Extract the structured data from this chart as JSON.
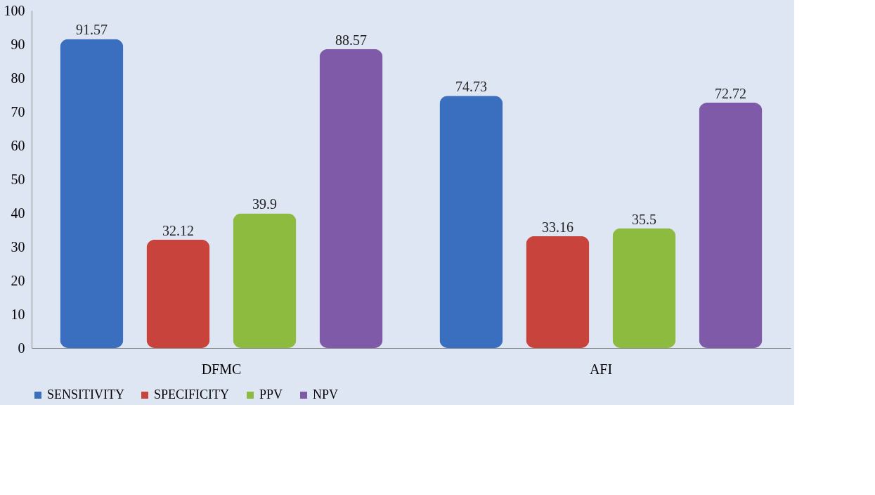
{
  "chart_data": {
    "type": "bar",
    "categories": [
      "DFMC",
      "AFI"
    ],
    "series": [
      {
        "name": "SENSITIVITY",
        "color": "#3a6fbf",
        "values": [
          91.57,
          74.73
        ]
      },
      {
        "name": "SPECIFICITY",
        "color": "#c9433d",
        "values": [
          32.12,
          33.16
        ]
      },
      {
        "name": "PPV",
        "color": "#8dbb3f",
        "values": [
          39.9,
          35.5
        ]
      },
      {
        "name": "NPV",
        "color": "#7f5aa8",
        "values": [
          88.57,
          72.72
        ]
      }
    ],
    "ylim": [
      0,
      100
    ],
    "yticks": [
      0,
      10,
      20,
      30,
      40,
      50,
      60,
      70,
      80,
      90,
      100
    ],
    "grid": false,
    "legend": "bottom",
    "data_labels": true
  }
}
